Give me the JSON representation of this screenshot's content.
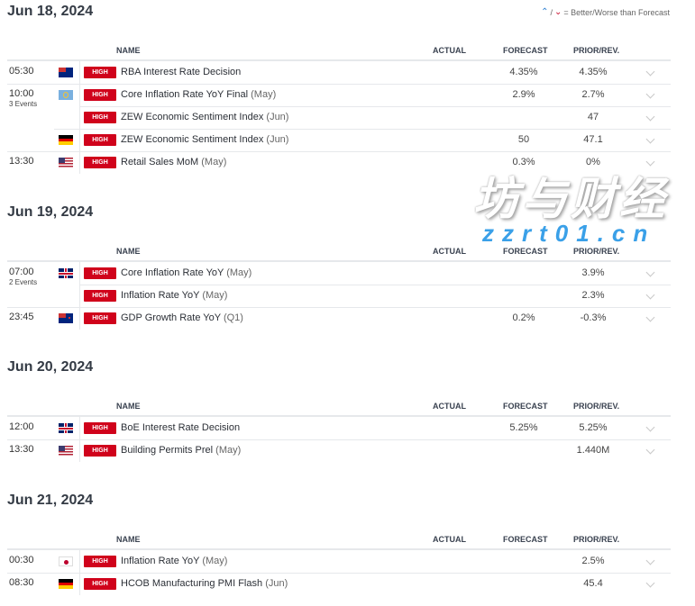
{
  "legend": {
    "text": "= Better/Worse than Forecast",
    "better_icon": "better-arrow-icon",
    "worse_icon": "worse-arrow-icon",
    "separator": "/"
  },
  "columns": {
    "name": "NAME",
    "actual": "ACTUAL",
    "forecast": "FORECAST",
    "prior": "PRIOR/REV."
  },
  "colors": {
    "high_badge": "#d0021b",
    "better": "#2d7fd1",
    "worse": "#c8102e"
  },
  "sections": [
    {
      "date": "Jun 18, 2024",
      "rows": [
        {
          "time": "05:30",
          "events": "",
          "flag": "au",
          "importance": "HIGH",
          "name": "RBA Interest Rate Decision",
          "period": "",
          "actual": "",
          "forecast": "4.35%",
          "prior": "4.35%"
        },
        {
          "time": "10:00",
          "events": "3 Events",
          "flag": "eu",
          "importance": "HIGH",
          "name": "Core Inflation Rate YoY Final",
          "period": "(May)",
          "actual": "",
          "forecast": "2.9%",
          "prior": "2.7%"
        },
        {
          "time": "",
          "events": "",
          "flag": "",
          "cont": true,
          "importance": "HIGH",
          "name": "ZEW Economic Sentiment Index",
          "period": "(Jun)",
          "actual": "",
          "forecast": "",
          "prior": "47"
        },
        {
          "time": "",
          "events": "",
          "flag": "de",
          "cont": true,
          "importance": "HIGH",
          "name": "ZEW Economic Sentiment Index",
          "period": "(Jun)",
          "actual": "",
          "forecast": "50",
          "prior": "47.1"
        },
        {
          "time": "13:30",
          "events": "",
          "flag": "us",
          "importance": "HIGH",
          "name": "Retail Sales MoM",
          "period": "(May)",
          "actual": "",
          "forecast": "0.3%",
          "prior": "0%"
        }
      ]
    },
    {
      "date": "Jun 19, 2024",
      "rows": [
        {
          "time": "07:00",
          "events": "2 Events",
          "flag": "gb",
          "importance": "HIGH",
          "name": "Core Inflation Rate YoY",
          "period": "(May)",
          "actual": "",
          "forecast": "",
          "prior": "3.9%"
        },
        {
          "time": "",
          "events": "",
          "flag": "",
          "cont": true,
          "importance": "HIGH",
          "name": "Inflation Rate YoY",
          "period": "(May)",
          "actual": "",
          "forecast": "",
          "prior": "2.3%"
        },
        {
          "time": "23:45",
          "events": "",
          "flag": "nz",
          "importance": "HIGH",
          "name": "GDP Growth Rate YoY",
          "period": "(Q1)",
          "actual": "",
          "forecast": "0.2%",
          "prior": "-0.3%"
        }
      ]
    },
    {
      "date": "Jun 20, 2024",
      "rows": [
        {
          "time": "12:00",
          "events": "",
          "flag": "gb",
          "importance": "HIGH",
          "name": "BoE Interest Rate Decision",
          "period": "",
          "actual": "",
          "forecast": "5.25%",
          "prior": "5.25%"
        },
        {
          "time": "13:30",
          "events": "",
          "flag": "us",
          "importance": "HIGH",
          "name": "Building Permits Prel",
          "period": "(May)",
          "actual": "",
          "forecast": "",
          "prior": "1.440M"
        }
      ]
    },
    {
      "date": "Jun 21, 2024",
      "rows": [
        {
          "time": "00:30",
          "events": "",
          "flag": "jp",
          "importance": "HIGH",
          "name": "Inflation Rate YoY",
          "period": "(May)",
          "actual": "",
          "forecast": "",
          "prior": "2.5%"
        },
        {
          "time": "08:30",
          "events": "",
          "flag": "de",
          "importance": "HIGH",
          "name": "HCOB Manufacturing PMI Flash",
          "period": "(Jun)",
          "actual": "",
          "forecast": "",
          "prior": "45.4"
        }
      ]
    }
  ],
  "watermark": {
    "chinese": "坊与财经",
    "url": "zzrt01.cn"
  }
}
